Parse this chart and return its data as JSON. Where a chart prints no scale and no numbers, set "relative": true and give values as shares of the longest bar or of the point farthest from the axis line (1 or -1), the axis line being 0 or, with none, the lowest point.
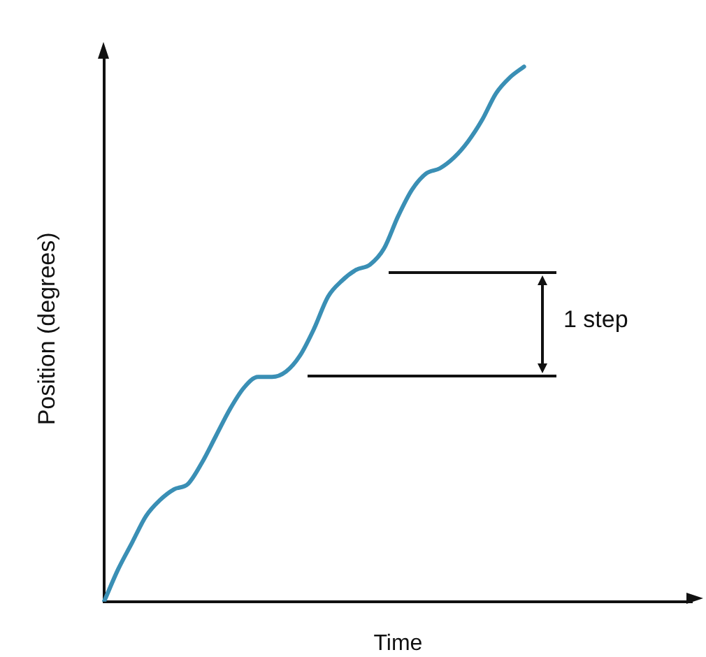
{
  "chart_data": {
    "type": "line",
    "relative": true,
    "xlabel": "Time",
    "ylabel": "Position (degrees)",
    "categories": [
      null,
      null,
      null,
      null,
      null,
      null,
      null,
      null,
      null,
      null,
      null,
      null,
      null,
      null,
      null,
      null,
      null,
      null,
      null,
      null,
      null,
      null,
      null,
      null,
      null,
      null,
      null,
      null,
      null,
      null,
      null,
      null,
      null,
      null,
      null,
      null,
      null,
      null,
      null,
      null,
      null,
      null,
      null
    ],
    "series": [
      {
        "color": "#3a8fb5",
        "values": [
          0,
          0.06,
          0.11,
          0.16,
          0.19,
          0.21,
          0.22,
          0.26,
          0.31,
          0.36,
          0.4,
          0.42,
          0.42,
          0.43,
          0.46,
          0.51,
          0.57,
          0.6,
          0.62,
          0.63,
          0.66,
          0.72,
          0.77,
          0.8,
          0.81,
          0.83,
          0.86,
          0.9,
          0.95,
          0.98,
          1,
          null,
          null,
          null,
          null,
          null,
          null,
          null,
          null,
          null,
          null,
          null,
          null
        ]
      }
    ],
    "annotations": [
      "1 step"
    ],
    "grid": false,
    "legend": false,
    "marker": "none",
    "line_style": "solid"
  }
}
